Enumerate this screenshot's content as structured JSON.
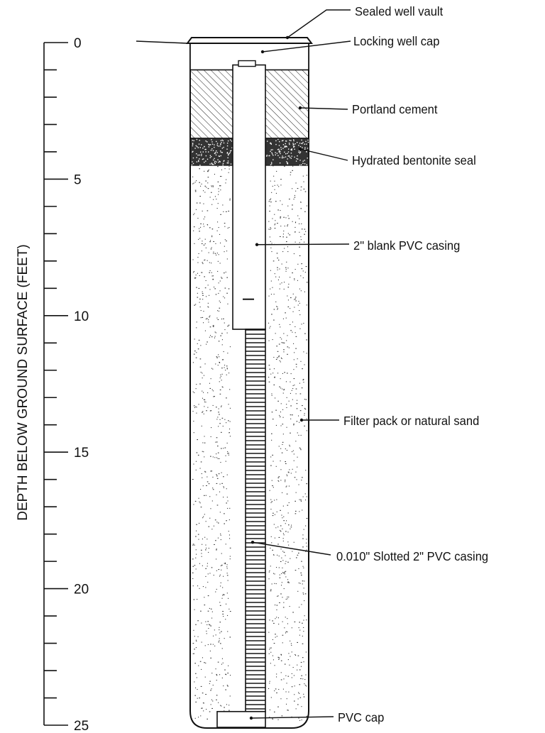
{
  "axis": {
    "title": "DEPTH BELOW GROUND SURFACE (FEET)",
    "min": 0,
    "max": 25,
    "major_ticks": [
      {
        "value": 0,
        "label": "0"
      },
      {
        "value": 5,
        "label": "5"
      },
      {
        "value": 10,
        "label": "10"
      },
      {
        "value": 15,
        "label": "15"
      },
      {
        "value": 20,
        "label": "20"
      },
      {
        "value": 25,
        "label": "25"
      }
    ]
  },
  "components": [
    {
      "id": "vault",
      "label": "Sealed well vault",
      "depth_ft": 0
    },
    {
      "id": "cap-lock",
      "label": "Locking well cap",
      "depth_ft": 0.3
    },
    {
      "id": "cement",
      "label": "Portland cement",
      "top_ft": 1,
      "bottom_ft": 3.5
    },
    {
      "id": "bentonite",
      "label": "Hydrated bentonite seal",
      "top_ft": 3.5,
      "bottom_ft": 4.5
    },
    {
      "id": "blank-casing",
      "label": "2\" blank PVC casing",
      "top_ft": 0.3,
      "bottom_ft": 10.5
    },
    {
      "id": "filter-pack",
      "label": "Filter pack or natural sand",
      "top_ft": 4.5,
      "bottom_ft": 25
    },
    {
      "id": "slotted-casing",
      "label": "0.010\" Slotted 2\" PVC casing",
      "top_ft": 10.5,
      "bottom_ft": 24.5
    },
    {
      "id": "pvc-cap",
      "label": "PVC cap",
      "top_ft": 24.5,
      "bottom_ft": 25
    }
  ]
}
